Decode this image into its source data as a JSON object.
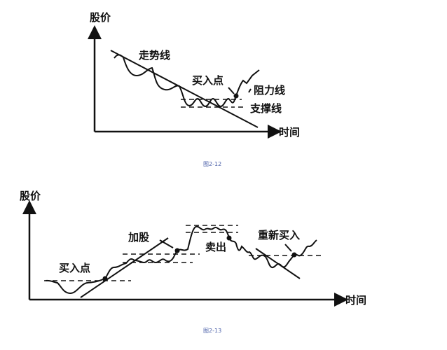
{
  "figure1": {
    "y_axis_label": "股价",
    "x_axis_label": "时间",
    "trend_line_label": "走势线",
    "buy_point_label": "买入点",
    "resistance_label": "阻力线",
    "support_label": "支撑线",
    "caption": "图2-12"
  },
  "figure2": {
    "y_axis_label": "股价",
    "x_axis_label": "时间",
    "buy_point_label": "买入点",
    "add_shares_label": "加股",
    "sell_label": "卖出",
    "rebuy_label": "重新买入",
    "caption": "图2-13"
  },
  "colors": {
    "ink": "#111111",
    "caption": "#4a5fa8"
  }
}
